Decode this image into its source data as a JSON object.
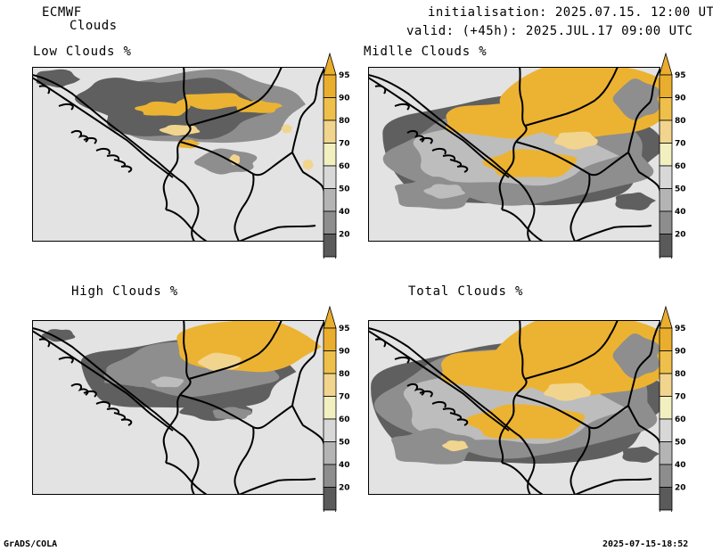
{
  "header": {
    "model": "ECMWF",
    "product": "Clouds",
    "init": "initialisation: 2025.07.15. 12:00 UTC",
    "valid": "valid: (+45h): 2025.JUL.17 09:00 UTC"
  },
  "panels": [
    {
      "title": "Low Clouds %"
    },
    {
      "title": "Midlle Clouds %"
    },
    {
      "title": "High Clouds %"
    },
    {
      "title": "Total Clouds %"
    }
  ],
  "colorbar": {
    "levels": [
      "95",
      "90",
      "80",
      "70",
      "60",
      "50",
      "40",
      "20"
    ],
    "colors": {
      "c95": "#e9ae2e",
      "c90": "#efbf4b",
      "c80": "#f1d58e",
      "c70": "#f2f0c0",
      "c60": "#d8d8d8",
      "c50": "#b4b4b4",
      "c40": "#8d8d8d",
      "c20": "#5a5a5a",
      "low": "#f2f2f2"
    }
  },
  "colors": {
    "land": "#e3e3e3",
    "cloud_dark": "#5f5f5f",
    "cloud_mid": "#8e8e8e",
    "cloud_light": "#bdbdbd",
    "cloud_yellow": "#ecb332",
    "cloud_pale": "#f1d58e"
  },
  "footer": {
    "left": "GrADS/COLA",
    "right": "2025-07-15-18:52"
  }
}
